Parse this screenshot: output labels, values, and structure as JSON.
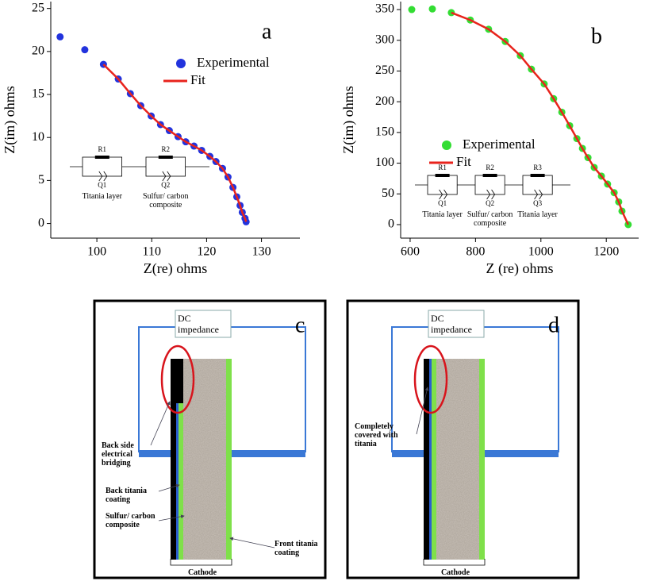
{
  "chart_data": [
    {
      "type": "scatter",
      "panel": "a",
      "xlabel": "Z(re) ohms",
      "ylabel": "Z(im) ohms",
      "xlim": [
        91.6,
        137
      ],
      "ylim": [
        -1.7,
        25.8
      ],
      "xticks": [
        100,
        110,
        120,
        130
      ],
      "yticks": [
        0,
        5,
        10,
        15,
        20,
        25
      ],
      "series": [
        {
          "name": "Experimental",
          "kind": "markers",
          "color": "#2233dd",
          "x": [
            93.3,
            97.8,
            101.2,
            103.9,
            106.1,
            108,
            109.9,
            111.6,
            113.2,
            114.8,
            116.2,
            117.7,
            119.1,
            120.6,
            121.7,
            122.9,
            123.9,
            124.8,
            125.5,
            126.1,
            126.5,
            127,
            127.2
          ],
          "values": [
            21.7,
            20.2,
            18.5,
            16.8,
            15.1,
            13.7,
            12.5,
            11.5,
            10.8,
            10.1,
            9.5,
            9,
            8.5,
            7.8,
            7.2,
            6.4,
            5.4,
            4.2,
            3.1,
            2.1,
            1.3,
            0.6,
            0.2
          ]
        },
        {
          "name": "Fit",
          "kind": "line",
          "color": "#e8231c",
          "x": [
            101.2,
            103.9,
            106.1,
            108,
            109.9,
            111.6,
            113.2,
            114.8,
            116.2,
            117.7,
            119.1,
            120.6,
            121.7,
            122.9,
            123.9,
            124.8,
            125.5,
            126.1,
            126.5,
            127,
            127.2
          ],
          "values": [
            18.5,
            16.8,
            15.1,
            13.7,
            12.5,
            11.5,
            10.8,
            10.1,
            9.5,
            9,
            8.5,
            7.8,
            7.2,
            6.4,
            5.4,
            4.2,
            3.1,
            2.1,
            1.3,
            0.6,
            0.2
          ]
        }
      ],
      "circuit": {
        "resistors": [
          "R1",
          "R2"
        ],
        "elements": [
          "Q1",
          "Q2"
        ],
        "labels": [
          "Titania layer",
          "Sulfur/ carbon composite"
        ]
      }
    },
    {
      "type": "scatter",
      "panel": "b",
      "xlabel": "Z (re) ohms",
      "ylabel": "Z(im) ohms",
      "xlim": [
        571,
        1299
      ],
      "ylim": [
        -22,
        363
      ],
      "xticks": [
        600,
        800,
        1000,
        1200
      ],
      "yticks": [
        0,
        50,
        100,
        150,
        200,
        250,
        300,
        350
      ],
      "series": [
        {
          "name": "Experimental",
          "kind": "markers",
          "color": "#33dd33",
          "x": [
            605,
            668,
            726,
            784,
            840,
            891,
            937,
            971,
            1010,
            1039,
            1064,
            1088,
            1110,
            1127,
            1144,
            1163,
            1185,
            1204,
            1224,
            1238,
            1248,
            1267
          ],
          "values": [
            350,
            351,
            345,
            333,
            318,
            298,
            275,
            253,
            229,
            205,
            183,
            161,
            140,
            124,
            109,
            93,
            79,
            66,
            52,
            37,
            22,
            0
          ]
        },
        {
          "name": "Fit",
          "kind": "line",
          "color": "#e8231c",
          "x": [
            726,
            784,
            840,
            891,
            937,
            971,
            1010,
            1039,
            1064,
            1088,
            1110,
            1127,
            1144,
            1163,
            1185,
            1204,
            1224,
            1238,
            1248,
            1267
          ],
          "values": [
            345,
            333,
            318,
            298,
            275,
            253,
            229,
            205,
            183,
            161,
            140,
            124,
            109,
            93,
            79,
            66,
            52,
            37,
            22,
            0
          ]
        }
      ],
      "circuit": {
        "resistors": [
          "R1",
          "R2",
          "R3"
        ],
        "elements": [
          "Q1",
          "Q2",
          "Q3"
        ],
        "labels": [
          "Titania layer",
          "Sulfur/ carbon composite",
          "Titania layer"
        ]
      }
    }
  ],
  "diagrams": [
    {
      "panel": "c",
      "source": "DC impedance",
      "electrode": "Cathode",
      "annotations": [
        "Back side electrical bridging",
        "Back titania coating",
        "Sulfur/ carbon composite",
        "Front titania coating"
      ]
    },
    {
      "panel": "d",
      "source": "DC impedance",
      "electrode": "Cathode",
      "annotations": [
        "Completely covered with titania"
      ]
    }
  ]
}
